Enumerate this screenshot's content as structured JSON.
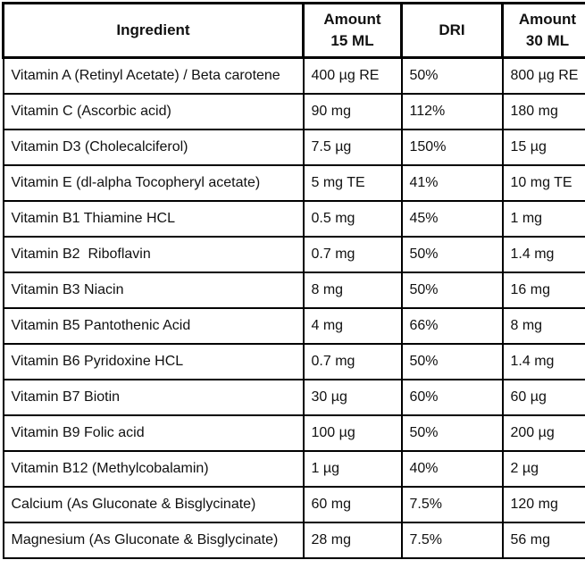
{
  "colors": {
    "border": "#000000",
    "text": "#111111",
    "background": "#ffffff"
  },
  "table": {
    "columns": [
      {
        "id": "ingredient",
        "header_line1": "Ingredient",
        "header_line2": ""
      },
      {
        "id": "amount_15ml",
        "header_line1": "Amount",
        "header_line2": "15 ML"
      },
      {
        "id": "dri",
        "header_line1": "DRI",
        "header_line2": ""
      },
      {
        "id": "amount_30ml",
        "header_line1": "Amount",
        "header_line2": "30 ML"
      }
    ],
    "rows": [
      {
        "ingredient": "Vitamin A (Retinyl Acetate) / Beta carotene",
        "amount_15ml": "400 µg RE",
        "dri": "50%",
        "amount_30ml": "800 µg RE"
      },
      {
        "ingredient": "Vitamin C (Ascorbic acid)",
        "amount_15ml": "90 mg",
        "dri": "112%",
        "amount_30ml": "180 mg"
      },
      {
        "ingredient": "Vitamin D3 (Cholecalciferol)",
        "amount_15ml": "7.5 µg",
        "dri": "150%",
        "amount_30ml": "15 µg"
      },
      {
        "ingredient": "Vitamin E (dl-alpha Tocopheryl acetate)",
        "amount_15ml": "5 mg TE",
        "dri": "41%",
        "amount_30ml": "10 mg TE"
      },
      {
        "ingredient": "Vitamin B1 Thiamine HCL",
        "amount_15ml": "0.5 mg",
        "dri": "45%",
        "amount_30ml": "1 mg"
      },
      {
        "ingredient": "Vitamin B2  Riboflavin",
        "amount_15ml": "0.7 mg",
        "dri": "50%",
        "amount_30ml": "1.4 mg"
      },
      {
        "ingredient": "Vitamin B3 Niacin",
        "amount_15ml": "8 mg",
        "dri": "50%",
        "amount_30ml": "16 mg"
      },
      {
        "ingredient": "Vitamin B5 Pantothenic Acid",
        "amount_15ml": "4 mg",
        "dri": "66%",
        "amount_30ml": "8 mg"
      },
      {
        "ingredient": "Vitamin B6 Pyridoxine HCL",
        "amount_15ml": "0.7 mg",
        "dri": "50%",
        "amount_30ml": "1.4 mg"
      },
      {
        "ingredient": "Vitamin B7 Biotin",
        "amount_15ml": "30 µg",
        "dri": "60%",
        "amount_30ml": "60 µg"
      },
      {
        "ingredient": "Vitamin B9 Folic acid",
        "amount_15ml": "100 µg",
        "dri": "50%",
        "amount_30ml": "200 µg"
      },
      {
        "ingredient": "Vitamin B12 (Methylcobalamin)",
        "amount_15ml": "1 µg",
        "dri": "40%",
        "amount_30ml": "2 µg"
      },
      {
        "ingredient": "Calcium (As Gluconate & Bisglycinate)",
        "amount_15ml": "60 mg",
        "dri": "7.5%",
        "amount_30ml": "120 mg"
      },
      {
        "ingredient": "Magnesium (As Gluconate & Bisglycinate)",
        "amount_15ml": "28 mg",
        "dri": "7.5%",
        "amount_30ml": "56 mg"
      }
    ]
  }
}
